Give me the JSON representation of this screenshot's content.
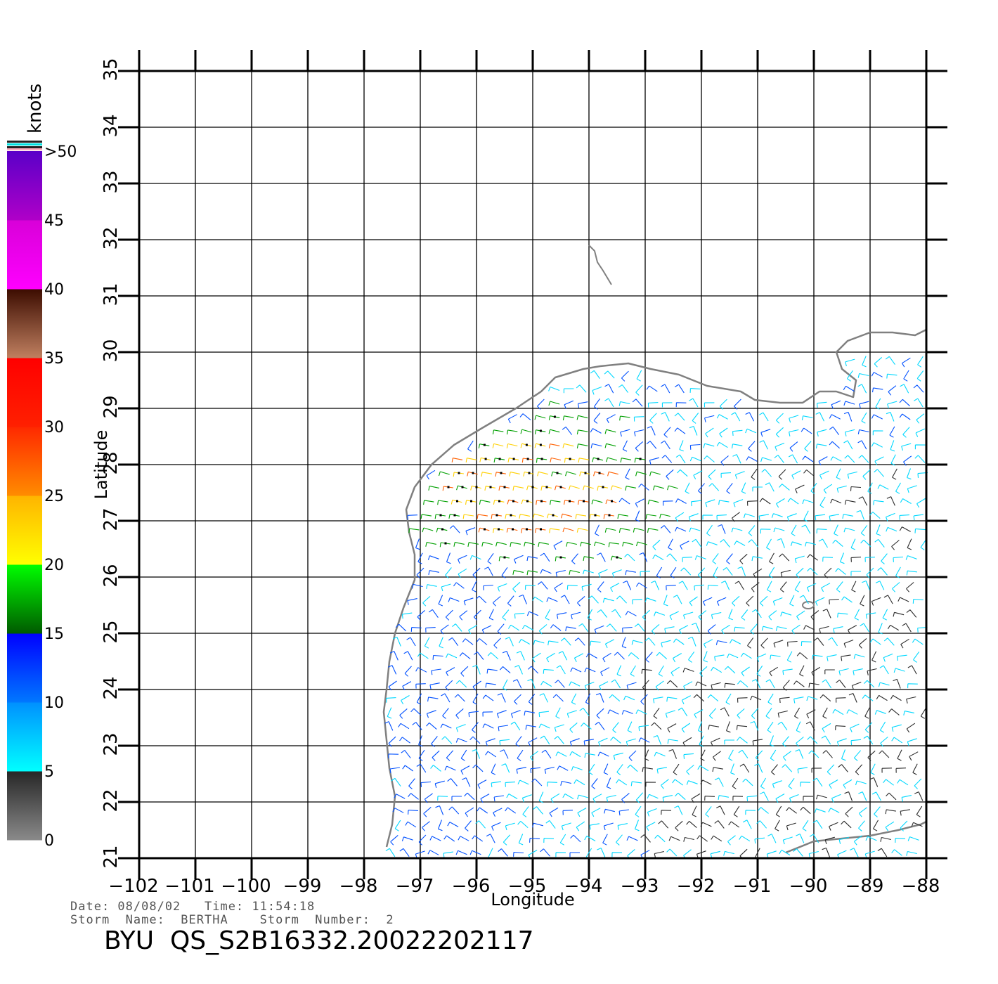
{
  "map": {
    "lon_range": [
      -102,
      -88
    ],
    "lat_range": [
      21,
      35
    ],
    "lon_ticks": [
      -102,
      -101,
      -100,
      -99,
      -98,
      -97,
      -96,
      -95,
      -94,
      -93,
      -92,
      -91,
      -90,
      -89,
      -88
    ],
    "lat_ticks": [
      21,
      22,
      23,
      24,
      25,
      26,
      27,
      28,
      29,
      30,
      31,
      32,
      33,
      34,
      35
    ],
    "xlabel": "Longitude",
    "ylabel": "Latitude",
    "grid": true,
    "coast_color": "#808080"
  },
  "colorbar": {
    "unit": "knots",
    "bins": [
      {
        "from": 0,
        "to": 5,
        "colors": [
          "#8a8a8a",
          "#262626"
        ]
      },
      {
        "from": 5,
        "to": 10,
        "colors": [
          "#00ffff",
          "#0090ff"
        ]
      },
      {
        "from": 10,
        "to": 15,
        "colors": [
          "#0078ff",
          "#0000ff"
        ]
      },
      {
        "from": 15,
        "to": 20,
        "colors": [
          "#005a00",
          "#00ff00"
        ]
      },
      {
        "from": 20,
        "to": 25,
        "colors": [
          "#ffff00",
          "#ffb400"
        ]
      },
      {
        "from": 25,
        "to": 30,
        "colors": [
          "#ff8c00",
          "#ff2800"
        ]
      },
      {
        "from": 30,
        "to": 35,
        "colors": [
          "#ff2000",
          "#ff0000"
        ]
      },
      {
        "from": 35,
        "to": 40,
        "colors": [
          "#c08060",
          "#3c0c00"
        ]
      },
      {
        "from": 40,
        "to": 45,
        "colors": [
          "#ff00ff",
          "#d800d8"
        ]
      },
      {
        "from": 45,
        "to": 50,
        "colors": [
          "#b000c8",
          "#5a00c8"
        ]
      }
    ],
    "labels": [
      "0",
      "5",
      "10",
      "15",
      "20",
      "25",
      "30",
      "35",
      "40",
      "45",
      ">50"
    ]
  },
  "info": {
    "date_line": "Date: 08/08/02   Time: 11:54:18",
    "storm_line": "Storm  Name:  BERTHA    Storm  Number:  2",
    "product_id": "BYU  QS_S2B16332.20022202117"
  }
}
